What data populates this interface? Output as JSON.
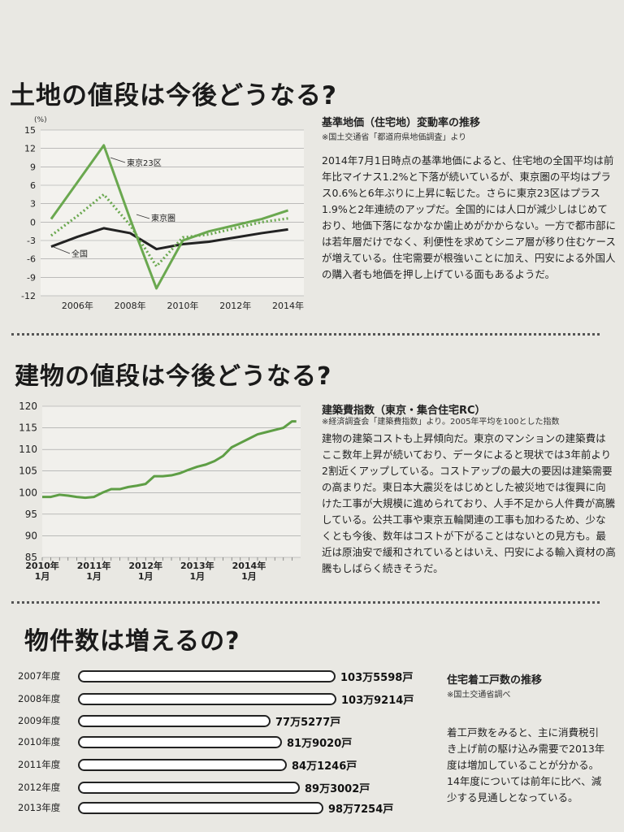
{
  "section1": {
    "title": "土地の値段は今後どうなる?",
    "caption": "基準地価（住宅地）変動率の推移",
    "source": "※国土交通省「都道府県地価調査」より",
    "body": "2014年7月1日時点の基準地価によると、住宅地の全国平均は前年比マイナス1.2%と下落が続いているが、東京圏の平均はプラス0.6%と6年ぶりに上昇に転じた。さらに東京23区はプラス1.9%と2年連続のアップだ。全国的には人口が減少しはじめており、地価下落になかなか歯止めがかからない。一方で都市部には若年層だけでなく、利便性を求めてシニア層が移り住むケースが増えている。住宅需要が根強いことに加え、円安による外国人の購入者も地価を押し上げている面もあるようだ。"
  },
  "section2": {
    "title": "建物の値段は今後どうなる?",
    "caption": "建築費指数（東京・集合住宅RC）",
    "source": "※経済調査会「建築費指数」より。2005年平均を100とした指数",
    "body": "建物の建築コストも上昇傾向だ。東京のマンションの建築費はここ数年上昇が続いており、データによると現状では3年前より2割近くアップしている。コストアップの最大の要因は建築需要の高まりだ。東日本大震災をはじめとした被災地では復興に向けた工事が大規模に進められており、人手不足から人件費が高騰している。公共工事や東京五輪関連の工事も加わるため、少なくとも今後、数年はコストが下がることはないとの見方も。最近は原油安で緩和されているとはいえ、円安による輸入資材の高騰もしばらく続きそうだ。"
  },
  "section3": {
    "title": "物件数は増えるの?",
    "caption": "住宅着工戸数の推移",
    "source": "※国土交通省調べ",
    "body": "着工戸数をみると、主に消費税引き上げ前の駆け込み需要で2013年度は増加していることが分かる。14年度については前年に比べ、減少する見通しとなっている。"
  },
  "chart_data": [
    {
      "type": "line",
      "title": "基準地価（住宅地）変動率の推移",
      "ylabel": "(%)",
      "ylim": [
        -12,
        15
      ],
      "yticks": [
        "15",
        "12",
        "9",
        "6",
        "3",
        "0",
        "-3",
        "-6",
        "-9",
        "-12"
      ],
      "xticks": [
        "2006年",
        "2008年",
        "2010年",
        "2012年",
        "2014年"
      ],
      "x": [
        2005,
        2006,
        2007,
        2008,
        2009,
        2010,
        2011,
        2012,
        2013,
        2014
      ],
      "series": [
        {
          "name": "東京23区",
          "color": "#6aa84f",
          "style": "solid",
          "values": [
            0.5,
            6.5,
            12.5,
            0.5,
            -10.8,
            -3,
            -1.5,
            -0.5,
            0.5,
            1.9
          ]
        },
        {
          "name": "東京圏",
          "color": "#6aa84f",
          "style": "dotted",
          "values": [
            -2.2,
            1,
            4.5,
            -0.5,
            -7.2,
            -2.5,
            -2,
            -1,
            0,
            0.6
          ]
        },
        {
          "name": "全国",
          "color": "#222222",
          "style": "solid",
          "values": [
            -4,
            -2.4,
            -1,
            -1.8,
            -4.4,
            -3.6,
            -3.2,
            -2.5,
            -1.8,
            -1.2
          ]
        }
      ]
    },
    {
      "type": "line",
      "title": "建築費指数（東京・集合住宅RC）",
      "ylim": [
        85,
        120
      ],
      "yticks": [
        "120",
        "115",
        "110",
        "105",
        "100",
        "95",
        "90",
        "85"
      ],
      "xticks": [
        "2010年\n1月",
        "2011年\n1月",
        "2012年\n1月",
        "2013年\n1月",
        "2014年\n1月"
      ],
      "x": [
        0,
        2,
        4,
        6,
        8,
        10,
        12,
        14,
        16,
        18,
        20,
        22,
        24,
        26,
        28,
        30,
        32,
        34,
        36,
        38,
        40,
        42,
        44,
        46,
        48,
        50,
        52,
        54,
        56,
        58,
        59
      ],
      "series": [
        {
          "name": "",
          "color": "#5e9e45",
          "values": [
            99,
            99,
            99.5,
            99.3,
            99,
            98.8,
            99,
            100,
            100.8,
            100.8,
            101.3,
            101.6,
            102,
            103.8,
            103.8,
            104,
            104.5,
            105.3,
            106,
            106.5,
            107.3,
            108.5,
            110.5,
            111.5,
            112.5,
            113.5,
            114,
            114.5,
            115,
            116.5,
            116.5
          ]
        }
      ]
    },
    {
      "type": "bar",
      "title": "住宅着工戸数の推移",
      "categories": [
        "2007年度",
        "2008年度",
        "2009年度",
        "2010年度",
        "2011年度",
        "2012年度",
        "2013年度"
      ],
      "values": [
        1035598,
        1039214,
        775277,
        819020,
        841246,
        893002,
        987254
      ],
      "value_labels": [
        "103万5598戸",
        "103万9214戸",
        "77万5277戸",
        "81万9020戸",
        "84万1246戸",
        "89万3002戸",
        "98万7254戸"
      ]
    }
  ]
}
